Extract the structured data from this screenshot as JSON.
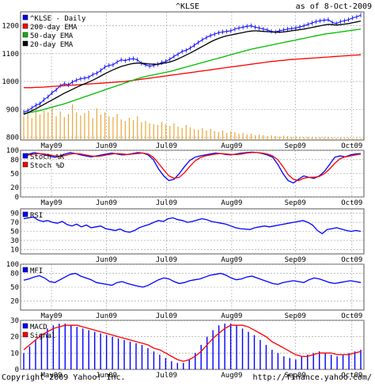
{
  "header": {
    "symbol": "^KLSE",
    "as_of": "as of   8-Oct-2009"
  },
  "footer": {
    "copyright": "Copyright 2009 Yahoo! Inc.",
    "url": "http://finance.yahoo.com/"
  },
  "colors": {
    "price": "#0000ff",
    "ema200": "#ff0000",
    "ema50": "#00bb00",
    "ema20": "#000000",
    "volume": "#e8a838",
    "stoch_k": "#0000ff",
    "stoch_d": "#ff0000",
    "rsi": "#0000ff",
    "mfi": "#0000ff",
    "macd": "#0000ff",
    "signal": "#ff0000",
    "grid": "#999999"
  },
  "chart_data": [
    {
      "type": "line",
      "title": "^KLSE",
      "x_ticks": [
        "May09",
        "Jun09",
        "Jul09",
        "Aug09",
        "Sep09",
        "Oct09"
      ],
      "ylim": [
        790,
        1250
      ],
      "y_ticks": [
        800,
        900,
        1000,
        1100,
        1200
      ],
      "legend": [
        "^KLSE - Daily",
        "200-day EMA",
        "50-day EMA",
        "20-day EMA"
      ],
      "legend_position": "top-left",
      "series": [
        {
          "name": "^KLSE - Daily",
          "values": [
            890,
            895,
            905,
            915,
            920,
            935,
            945,
            960,
            970,
            985,
            992,
            988,
            998,
            1005,
            1010,
            1012,
            1015,
            1025,
            1030,
            1040,
            1052,
            1058,
            1060,
            1070,
            1078,
            1075,
            1080,
            1082,
            1078,
            1065,
            1060,
            1055,
            1058,
            1062,
            1068,
            1072,
            1080,
            1090,
            1098,
            1108,
            1112,
            1120,
            1130,
            1140,
            1150,
            1158,
            1165,
            1170,
            1175,
            1178,
            1180,
            1182,
            1188,
            1192,
            1195,
            1198,
            1200,
            1195,
            1192,
            1188,
            1185,
            1180,
            1178,
            1182,
            1185,
            1188,
            1190,
            1192,
            1196,
            1200,
            1205,
            1210,
            1215,
            1218,
            1220,
            1222,
            1212,
            1208,
            1215,
            1218,
            1222,
            1228,
            1232,
            1238
          ]
        },
        {
          "name": "200-day EMA",
          "values": [
            978,
            978,
            978,
            979,
            979,
            980,
            981,
            982,
            983,
            984,
            985,
            986,
            987,
            988,
            989,
            990,
            991,
            992,
            993,
            994,
            995,
            996,
            997,
            998,
            999,
            1000,
            1002,
            1004,
            1006,
            1008,
            1010,
            1012,
            1014,
            1016,
            1018,
            1020,
            1022,
            1024,
            1026,
            1028,
            1030,
            1032,
            1034,
            1036,
            1038,
            1040,
            1042,
            1044,
            1046,
            1048,
            1050,
            1052,
            1054,
            1056,
            1058,
            1060,
            1062,
            1064,
            1066,
            1068,
            1070,
            1072,
            1073,
            1075,
            1076,
            1078,
            1079,
            1080,
            1081,
            1082,
            1083,
            1084,
            1085,
            1086,
            1087,
            1088,
            1089,
            1090,
            1091,
            1092,
            1093,
            1094,
            1095,
            1096
          ]
        },
        {
          "name": "50-day EMA",
          "values": [
            885,
            888,
            890,
            893,
            896,
            900,
            904,
            908,
            912,
            916,
            920,
            925,
            930,
            935,
            940,
            945,
            950,
            955,
            960,
            965,
            970,
            975,
            980,
            985,
            990,
            995,
            1000,
            1005,
            1010,
            1014,
            1018,
            1021,
            1024,
            1027,
            1030,
            1033,
            1036,
            1040,
            1044,
            1048,
            1052,
            1056,
            1060,
            1064,
            1068,
            1072,
            1076,
            1080,
            1084,
            1088,
            1092,
            1096,
            1100,
            1104,
            1108,
            1112,
            1116,
            1119,
            1122,
            1125,
            1128,
            1131,
            1134,
            1137,
            1140,
            1143,
            1146,
            1149,
            1152,
            1155,
            1158,
            1161,
            1164,
            1167,
            1170,
            1172,
            1174,
            1176,
            1178,
            1180,
            1182,
            1184,
            1186,
            1188
          ]
        },
        {
          "name": "20-day EMA",
          "values": [
            882,
            888,
            895,
            902,
            910,
            918,
            926,
            934,
            942,
            950,
            958,
            965,
            972,
            979,
            986,
            992,
            998,
            1005,
            1012,
            1020,
            1028,
            1035,
            1042,
            1048,
            1054,
            1058,
            1062,
            1065,
            1066,
            1066,
            1064,
            1063,
            1062,
            1062,
            1064,
            1067,
            1070,
            1075,
            1081,
            1088,
            1095,
            1102,
            1110,
            1118,
            1126,
            1134,
            1142,
            1149,
            1155,
            1160,
            1164,
            1167,
            1170,
            1173,
            1176,
            1179,
            1181,
            1182,
            1181,
            1180,
            1179,
            1178,
            1177,
            1177,
            1178,
            1180,
            1182,
            1184,
            1186,
            1188,
            1191,
            1194,
            1197,
            1200,
            1203,
            1205,
            1204,
            1203,
            1204,
            1206,
            1208,
            1211,
            1214,
            1217
          ]
        }
      ],
      "volume": {
        "values": [
          60,
          70,
          55,
          80,
          65,
          75,
          70,
          85,
          60,
          72,
          58,
          66,
          90,
          70,
          62,
          68,
          74,
          55,
          80,
          64,
          70,
          60,
          58,
          66,
          52,
          48,
          56,
          50,
          60,
          45,
          48,
          42,
          40,
          38,
          46,
          40,
          36,
          42,
          34,
          30,
          38,
          32,
          28,
          26,
          30,
          24,
          28,
          22,
          20,
          24,
          18,
          22,
          20,
          16,
          18,
          14,
          16,
          12,
          14,
          12,
          10,
          12,
          10,
          9,
          11,
          10,
          8,
          9,
          8,
          7,
          8,
          7,
          6,
          7,
          6,
          8,
          6,
          5,
          6,
          5,
          6,
          4,
          5,
          4
        ]
      }
    },
    {
      "type": "line",
      "x_ticks": [
        "May09",
        "Jun09",
        "Jul09",
        "Aug09",
        "Sep09",
        "Oct09"
      ],
      "ylim": [
        0,
        100
      ],
      "y_ticks": [
        0,
        20,
        50,
        80,
        100
      ],
      "legend": [
        "Stoch %K",
        "Stoch %D"
      ],
      "series": [
        {
          "name": "Stoch %K",
          "values": [
            90,
            92,
            95,
            93,
            90,
            88,
            85,
            88,
            92,
            95,
            93,
            90,
            88,
            86,
            88,
            90,
            92,
            94,
            92,
            90,
            91,
            93,
            95,
            94,
            90,
            80,
            60,
            45,
            35,
            38,
            50,
            65,
            78,
            85,
            88,
            90,
            92,
            94,
            93,
            91,
            90,
            92,
            94,
            95,
            96,
            95,
            93,
            90,
            85,
            70,
            50,
            35,
            30,
            38,
            45,
            42,
            40,
            45,
            55,
            70,
            85,
            88,
            86,
            90,
            92,
            93
          ]
        },
        {
          "name": "Stoch %D",
          "values": [
            88,
            90,
            92,
            93,
            92,
            90,
            88,
            87,
            89,
            92,
            93,
            92,
            90,
            88,
            87,
            88,
            90,
            92,
            93,
            92,
            91,
            92,
            93,
            94,
            92,
            85,
            72,
            58,
            45,
            40,
            42,
            52,
            65,
            77,
            84,
            88,
            90,
            92,
            93,
            92,
            91,
            91,
            92,
            94,
            95,
            95,
            94,
            92,
            88,
            80,
            65,
            48,
            38,
            35,
            40,
            42,
            42,
            44,
            50,
            60,
            72,
            82,
            86,
            88,
            90,
            92
          ]
        }
      ]
    },
    {
      "type": "line",
      "x_ticks": [
        "Jun09",
        "Jul09",
        "Aug09",
        "Sep09",
        "Oct09"
      ],
      "ylim": [
        0,
        100
      ],
      "y_ticks": [
        10,
        30,
        50,
        70,
        90
      ],
      "legend": [
        "RSI"
      ],
      "series": [
        {
          "name": "RSI",
          "values": [
            78,
            80,
            82,
            75,
            72,
            74,
            70,
            68,
            72,
            65,
            62,
            66,
            60,
            64,
            58,
            60,
            62,
            56,
            54,
            52,
            55,
            50,
            48,
            52,
            58,
            62,
            65,
            70,
            74,
            72,
            78,
            80,
            76,
            74,
            70,
            72,
            75,
            78,
            76,
            72,
            70,
            68,
            66,
            62,
            58,
            56,
            55,
            54,
            58,
            60,
            62,
            60,
            62,
            64,
            66,
            68,
            70,
            72,
            74,
            70,
            64,
            52,
            45,
            54,
            56,
            58,
            55,
            52,
            50,
            52,
            50
          ]
        }
      ]
    },
    {
      "type": "line",
      "x_ticks": [
        "May09",
        "Jun09",
        "Jul09",
        "Aug09",
        "Sep09",
        "Oct09"
      ],
      "ylim": [
        0,
        100
      ],
      "y_ticks": [
        20,
        50,
        80,
        100
      ],
      "legend": [
        "MFI"
      ],
      "series": [
        {
          "name": "MFI",
          "values": [
            65,
            68,
            72,
            75,
            70,
            62,
            60,
            66,
            72,
            78,
            80,
            74,
            70,
            66,
            60,
            58,
            56,
            54,
            60,
            62,
            58,
            55,
            52,
            50,
            54,
            60,
            66,
            70,
            68,
            62,
            58,
            60,
            64,
            66,
            68,
            72,
            76,
            78,
            80,
            76,
            70,
            66,
            68,
            72,
            74,
            70,
            66,
            62,
            58,
            56,
            60,
            62,
            64,
            62,
            60,
            66,
            70,
            68,
            64,
            60,
            58,
            60,
            62,
            64,
            62,
            60
          ]
        }
      ]
    },
    {
      "type": "bar",
      "x_ticks": [
        "May09",
        "Jun09",
        "Jul09",
        "Aug09",
        "Sep09",
        "Oct09"
      ],
      "ylim": [
        0,
        30
      ],
      "y_ticks": [
        0,
        10,
        20,
        30
      ],
      "legend": [
        "MACD",
        "Signal"
      ],
      "series": [
        {
          "name": "MACD",
          "values": [
            10,
            14,
            18,
            22,
            25,
            27,
            28,
            28,
            27,
            26,
            25,
            24,
            23,
            22,
            21,
            20,
            19,
            18,
            17,
            16,
            15,
            13,
            11,
            9,
            7,
            5,
            4,
            4,
            6,
            10,
            15,
            20,
            24,
            27,
            28,
            28,
            27,
            25,
            23,
            21,
            18,
            15,
            12,
            10,
            8,
            7,
            6,
            8,
            9,
            10,
            11,
            10,
            9,
            8,
            9,
            10,
            11,
            12
          ]
        },
        {
          "name": "Signal",
          "values": [
            12,
            15,
            18,
            21,
            23,
            25,
            26,
            27,
            27,
            27,
            26,
            25,
            24,
            23,
            22,
            21,
            20,
            19,
            18,
            17,
            16,
            15,
            13,
            12,
            10,
            8,
            6,
            5,
            6,
            8,
            11,
            15,
            19,
            22,
            25,
            27,
            27,
            27,
            26,
            24,
            22,
            20,
            17,
            15,
            13,
            11,
            9,
            8,
            8,
            9,
            10,
            10,
            10,
            9,
            9,
            9,
            10,
            11
          ]
        }
      ]
    }
  ]
}
